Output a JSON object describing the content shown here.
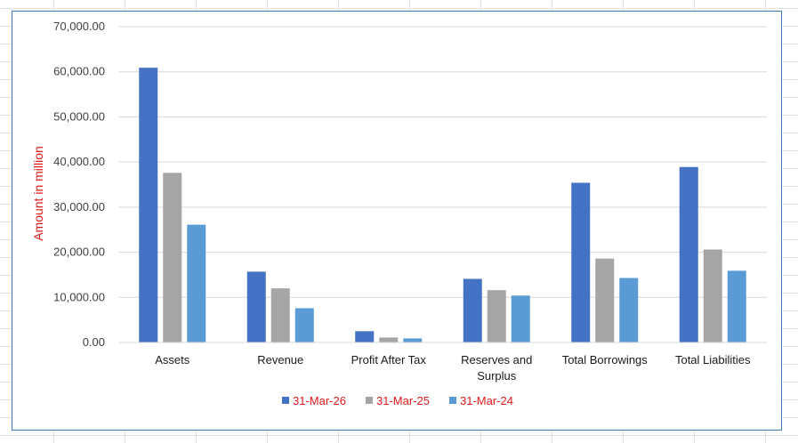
{
  "chart_data": {
    "type": "bar",
    "title": "",
    "xlabel": "",
    "ylabel": "Amount in million",
    "ylim": [
      0,
      70000
    ],
    "y_ticks": [
      "0.00",
      "10,000.00",
      "20,000.00",
      "30,000.00",
      "40,000.00",
      "50,000.00",
      "60,000.00",
      "70,000.00"
    ],
    "y_tick_values": [
      0,
      10000,
      20000,
      30000,
      40000,
      50000,
      60000,
      70000
    ],
    "grid": true,
    "legend_position": "bottom",
    "categories": [
      [
        "Assets"
      ],
      [
        "Revenue"
      ],
      [
        "Profit After Tax"
      ],
      [
        "Reserves and",
        "Surplus"
      ],
      [
        "Total Borrowings"
      ],
      [
        "Total Liabilities"
      ]
    ],
    "series": [
      {
        "name": "31-Mar-26",
        "color": "#4472c4",
        "values": [
          60900,
          15700,
          2500,
          14100,
          35400,
          38900
        ]
      },
      {
        "name": "31-Mar-25",
        "color": "#a5a5a5",
        "values": [
          37600,
          12000,
          1100,
          11600,
          18600,
          20600
        ]
      },
      {
        "name": "31-Mar-24",
        "color": "#5b9bd5",
        "values": [
          26100,
          7600,
          900,
          10400,
          14300,
          15900
        ]
      }
    ],
    "gridline_color": "#d9d9d9"
  }
}
